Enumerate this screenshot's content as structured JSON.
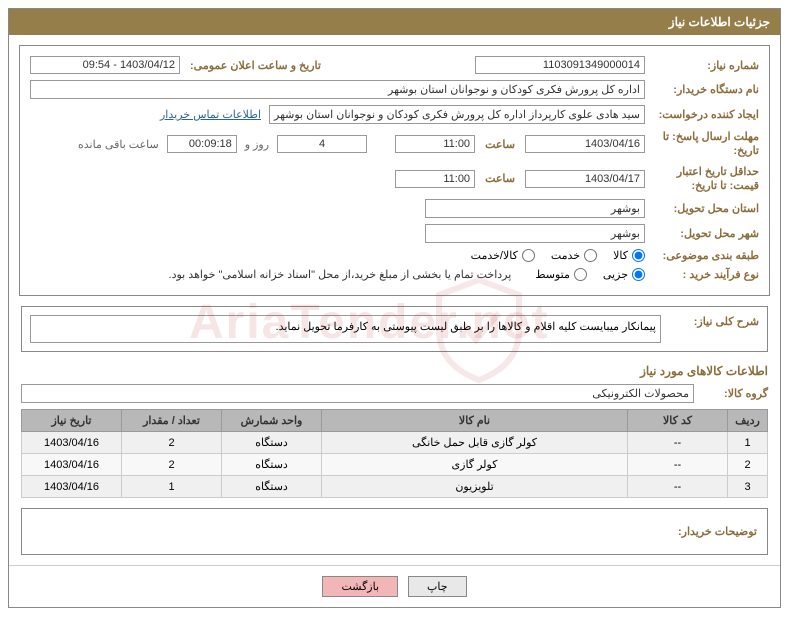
{
  "header": {
    "title": "جزئیات اطلاعات نیاز"
  },
  "fields": {
    "need_number_label": "شماره نیاز:",
    "need_number": "1103091349000014",
    "announce_label": "تاریخ و ساعت اعلان عمومی:",
    "announce_value": "1403/04/12 - 09:54",
    "buyer_org_label": "نام دستگاه خریدار:",
    "buyer_org": "اداره کل پرورش فکری کودکان و نوجوانان استان بوشهر",
    "requester_label": "ایجاد کننده درخواست:",
    "requester": "سید هادی علوی کارپرداز اداره کل پرورش فکری کودکان و نوجوانان استان بوشهر",
    "contact_link": "اطلاعات تماس خریدار",
    "deadline_label": "مهلت ارسال پاسخ: تا تاریخ:",
    "deadline_date": "1403/04/16",
    "time_label": "ساعت",
    "deadline_time": "11:00",
    "days_label": "روز و",
    "days_value": "4",
    "remain_time": "00:09:18",
    "remain_label": "ساعت باقی مانده",
    "validity_label": "حداقل تاریخ اعتبار قیمت: تا تاریخ:",
    "validity_date": "1403/04/17",
    "validity_time": "11:00",
    "province_label": "استان محل تحویل:",
    "province": "بوشهر",
    "city_label": "شهر محل تحویل:",
    "city": "بوشهر",
    "category_label": "طبقه بندی موضوعی:",
    "cat_goods": "کالا",
    "cat_service": "خدمت",
    "cat_both": "کالا/خدمت",
    "process_label": "نوع فرآیند خرید :",
    "proc_small": "جزیی",
    "proc_medium": "متوسط",
    "process_note": "پرداخت تمام یا بخشی از مبلغ خرید،از محل \"اسناد خزانه اسلامی\" خواهد بود.",
    "desc_title": "شرح کلی نیاز:",
    "desc_text": "پیمانکار میبایست کلیه اقلام و کالاها را بر طبق لیست پیوستی به کارفرما تحویل نماید.",
    "goods_title": "اطلاعات کالاهای مورد نیاز",
    "group_label": "گروه کالا:",
    "group_value": "محصولات الکترونیکی",
    "buyer_note_label": "توضیحات خریدار:"
  },
  "table": {
    "headers": {
      "row": "ردیف",
      "code": "کد کالا",
      "name": "نام کالا",
      "unit": "واحد شمارش",
      "qty": "تعداد / مقدار",
      "date": "تاریخ نیاز"
    },
    "rows": [
      {
        "n": "1",
        "code": "--",
        "name": "کولر گازی قابل حمل خانگی",
        "unit": "دستگاه",
        "qty": "2",
        "date": "1403/04/16"
      },
      {
        "n": "2",
        "code": "--",
        "name": "کولر گازی",
        "unit": "دستگاه",
        "qty": "2",
        "date": "1403/04/16"
      },
      {
        "n": "3",
        "code": "--",
        "name": "تلویزیون",
        "unit": "دستگاه",
        "qty": "1",
        "date": "1403/04/16"
      }
    ]
  },
  "buttons": {
    "print": "چاپ",
    "back": "بازگشت"
  },
  "colors": {
    "header_bg": "#967e4a",
    "label_color": "#8a6d3b",
    "link_color": "#2a6496",
    "th_bg": "#b8b8b8"
  }
}
